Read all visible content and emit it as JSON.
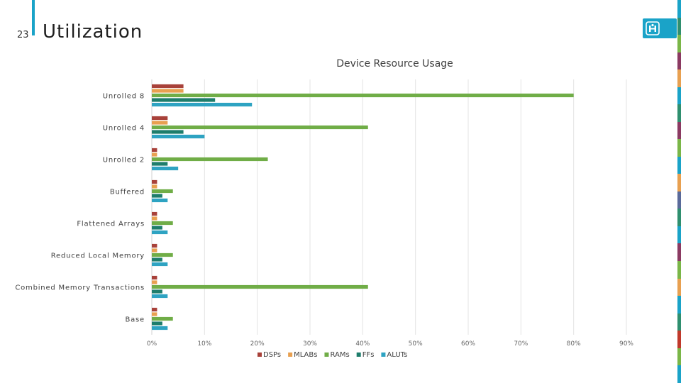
{
  "slide": {
    "number": "23",
    "title": "Utilization"
  },
  "logo": {
    "icon": "institution-logo-icon",
    "color": "#1aa3c8"
  },
  "colors": {
    "accent": "#1aa3c8",
    "stripe": [
      "#1aa3c8",
      "#2f8f6f",
      "#7ab648",
      "#8b3a62",
      "#e8a050",
      "#1aa3c8",
      "#2f8f6f",
      "#8b3a62",
      "#7ab648",
      "#1aa3c8",
      "#e8a050",
      "#5a6a9a",
      "#2f8f6f",
      "#1aa3c8",
      "#8b3a62",
      "#7ab648",
      "#e8a050",
      "#1aa3c8",
      "#2f8f6f",
      "#c0392b",
      "#7ab648",
      "#1aa3c8"
    ]
  },
  "chart_data": {
    "type": "bar",
    "orientation": "horizontal",
    "title": "Device Resource Usage",
    "categories": [
      "Unrolled 8",
      "Unrolled 4",
      "Unrolled 2",
      "Buffered",
      "Flattened Arrays",
      "Reduced Local Memory",
      "Combined Memory Transactions",
      "Base"
    ],
    "series": [
      {
        "name": "DSPs",
        "color": "#a8413a",
        "values": [
          6,
          3,
          1,
          1,
          1,
          1,
          1,
          1
        ]
      },
      {
        "name": "MLABs",
        "color": "#e8a050",
        "values": [
          6,
          3,
          1,
          1,
          1,
          1,
          1,
          1
        ]
      },
      {
        "name": "RAMs",
        "color": "#70ad47",
        "values": [
          80,
          41,
          22,
          4,
          4,
          4,
          41,
          4
        ]
      },
      {
        "name": "FFs",
        "color": "#1e7d6c",
        "values": [
          12,
          6,
          3,
          2,
          2,
          2,
          2,
          2
        ]
      },
      {
        "name": "ALUTs",
        "color": "#2ea3c2",
        "values": [
          19,
          10,
          5,
          3,
          3,
          3,
          3,
          3
        ]
      }
    ],
    "x_ticks": [
      "0%",
      "10%",
      "20%",
      "30%",
      "40%",
      "50%",
      "60%",
      "70%",
      "80%",
      "90%"
    ],
    "xlim": [
      0,
      90
    ],
    "grid": true,
    "legend": "bottom"
  }
}
